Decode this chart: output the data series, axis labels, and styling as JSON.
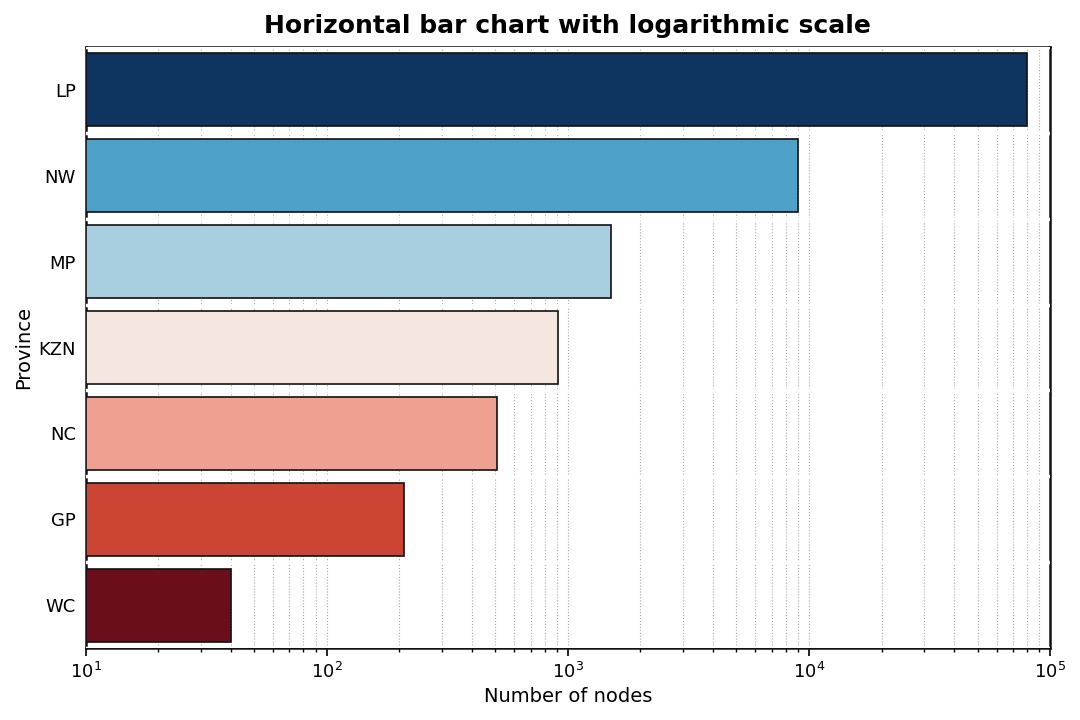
{
  "title": "Horizontal bar chart with logarithmic scale",
  "xlabel": "Number of nodes",
  "ylabel": "Province",
  "categories": [
    "WC",
    "GP",
    "NC",
    "KZN",
    "MP",
    "NW",
    "LP"
  ],
  "values": [
    30,
    200,
    500,
    900,
    1500,
    9000,
    80000
  ],
  "bar_colors": [
    "#6b0d1a",
    "#cc4433",
    "#f0a090",
    "#f5e6df",
    "#a8cfe0",
    "#4da0c8",
    "#0d3560"
  ],
  "bar_edgecolor": "#111111",
  "xlim_min": 10,
  "xlim_max": 100000,
  "background_color": "#ffffff",
  "grid_color": "#aaaaaa",
  "title_fontsize": 18,
  "label_fontsize": 14,
  "tick_fontsize": 13,
  "bar_height": 0.85,
  "bar_gap_color": "#ffffff"
}
